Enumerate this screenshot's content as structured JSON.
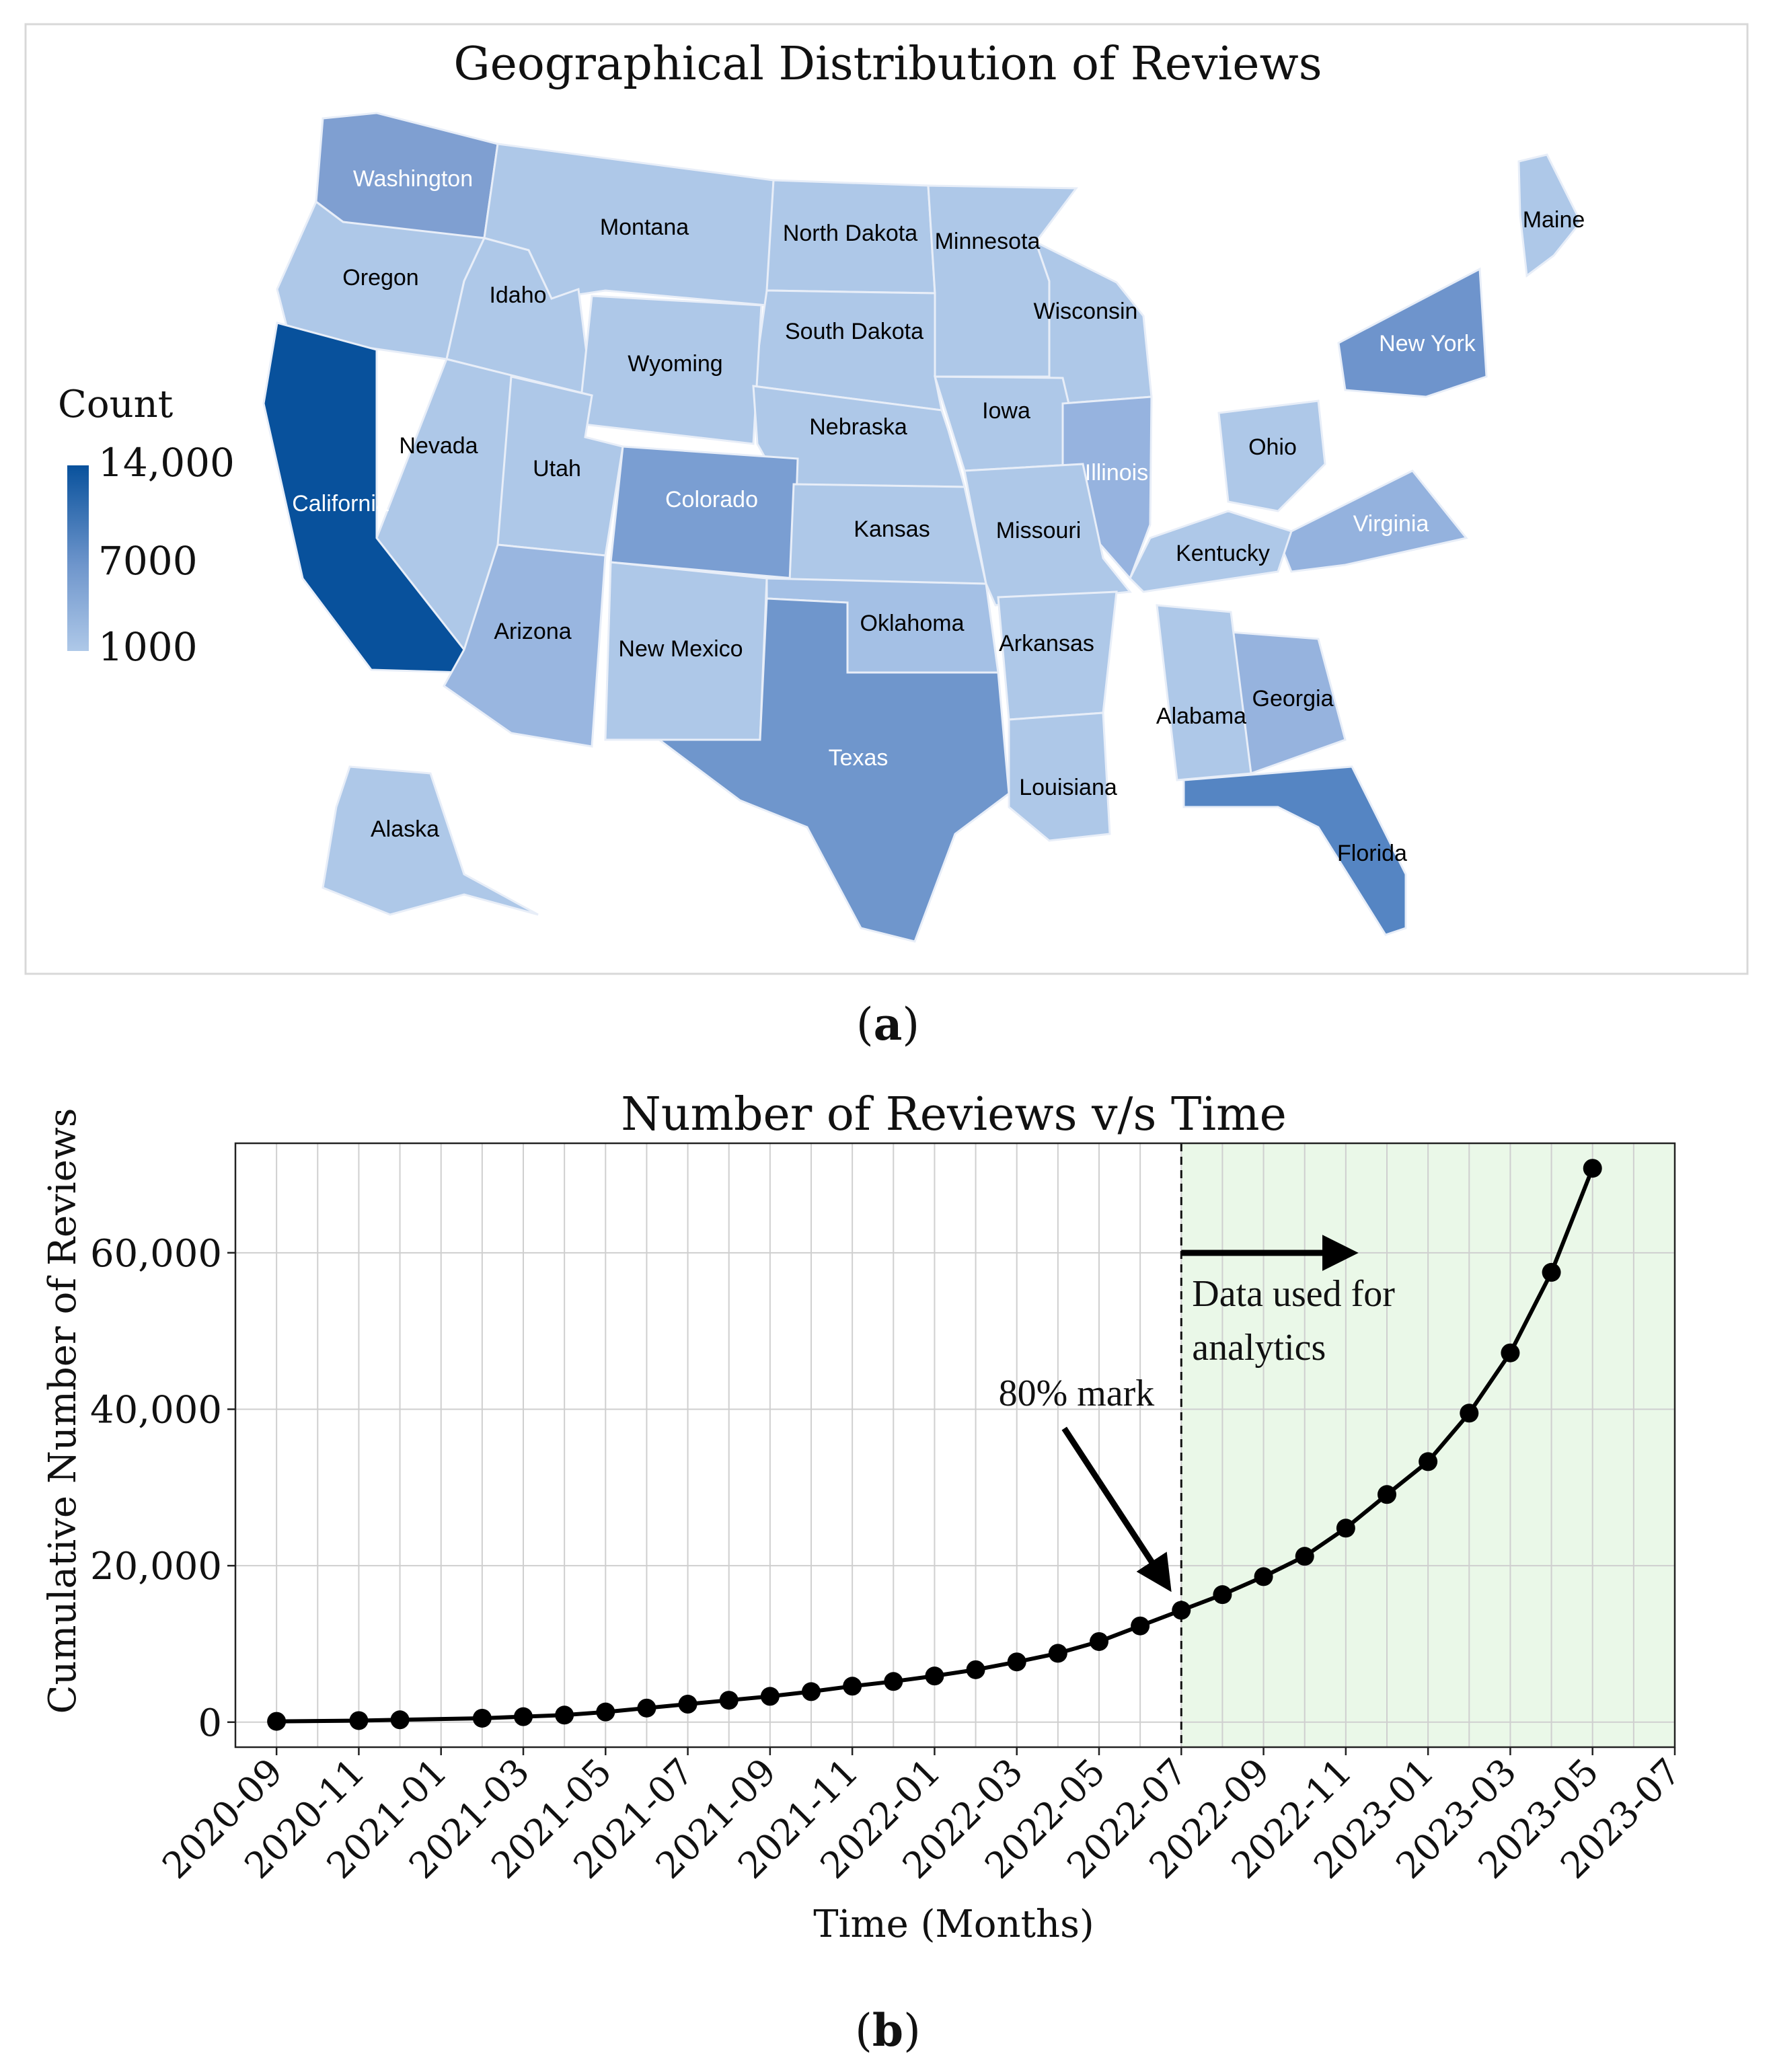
{
  "panel_a": {
    "title": "Geographical Distribution of Reviews",
    "caption_open": "(",
    "caption_letter": "a",
    "caption_close": ")",
    "colorbar": {
      "title": "Count",
      "ticks": [
        "14,000",
        "7000",
        "1000"
      ],
      "tick_values": [
        14000,
        7000,
        1000
      ],
      "color_low": "#aec8e8",
      "color_high": "#08519c"
    },
    "states": [
      {
        "name": "Washington",
        "color": "#7f9fd1",
        "label_color": "#ffffff"
      },
      {
        "name": "Oregon",
        "color": "#aec8e8",
        "label_color": "#000000"
      },
      {
        "name": "Montana",
        "color": "#aec8e8",
        "label_color": "#000000"
      },
      {
        "name": "Idaho",
        "color": "#aec8e8",
        "label_color": "#000000"
      },
      {
        "name": "North Dakota",
        "color": "#aec8e8",
        "label_color": "#000000"
      },
      {
        "name": "Minnesota",
        "color": "#aec8e8",
        "label_color": "#000000"
      },
      {
        "name": "Maine",
        "color": "#aec8e8",
        "label_color": "#000000"
      },
      {
        "name": "Wisconsin",
        "color": "#aec8e8",
        "label_color": "#000000"
      },
      {
        "name": "South Dakota",
        "color": "#aec8e8",
        "label_color": "#000000"
      },
      {
        "name": "Wyoming",
        "color": "#aec8e8",
        "label_color": "#000000"
      },
      {
        "name": "New York",
        "color": "#6e94cc",
        "label_color": "#ffffff"
      },
      {
        "name": "Nevada",
        "color": "#aec8e8",
        "label_color": "#000000"
      },
      {
        "name": "Utah",
        "color": "#aec8e8",
        "label_color": "#000000"
      },
      {
        "name": "Nebraska",
        "color": "#aec8e8",
        "label_color": "#000000"
      },
      {
        "name": "Iowa",
        "color": "#aec8e8",
        "label_color": "#000000"
      },
      {
        "name": "Ohio",
        "color": "#aec8e8",
        "label_color": "#000000"
      },
      {
        "name": "California",
        "color": "#08519c",
        "label_color": "#ffffff"
      },
      {
        "name": "Colorado",
        "color": "#7a9ed2",
        "label_color": "#ffffff"
      },
      {
        "name": "Illinois",
        "color": "#96b3df",
        "label_color": "#ffffff"
      },
      {
        "name": "Kansas",
        "color": "#aec8e8",
        "label_color": "#000000"
      },
      {
        "name": "Missouri",
        "color": "#aec8e8",
        "label_color": "#000000"
      },
      {
        "name": "Virginia",
        "color": "#94b2de",
        "label_color": "#ffffff"
      },
      {
        "name": "Kentucky",
        "color": "#aec8e8",
        "label_color": "#000000"
      },
      {
        "name": "Arizona",
        "color": "#99b6e0",
        "label_color": "#000000"
      },
      {
        "name": "New Mexico",
        "color": "#aec8e8",
        "label_color": "#000000"
      },
      {
        "name": "Oklahoma",
        "color": "#a4c0e5",
        "label_color": "#000000"
      },
      {
        "name": "Arkansas",
        "color": "#aec8e8",
        "label_color": "#000000"
      },
      {
        "name": "Georgia",
        "color": "#96b3de",
        "label_color": "#000000"
      },
      {
        "name": "Alabama",
        "color": "#aec8e8",
        "label_color": "#000000"
      },
      {
        "name": "Texas",
        "color": "#6f96cc",
        "label_color": "#ffffff"
      },
      {
        "name": "Louisiana",
        "color": "#aec8e8",
        "label_color": "#000000"
      },
      {
        "name": "Alaska",
        "color": "#aec8e8",
        "label_color": "#000000"
      },
      {
        "name": "Florida",
        "color": "#5585c3",
        "label_color": "#000000"
      }
    ]
  },
  "panel_b": {
    "caption_open": "(",
    "caption_letter": "b",
    "caption_close": ")",
    "annotations": {
      "mark_label": "80% mark",
      "region_label_line1": "Data used for",
      "region_label_line2": "analytics",
      "divider_date": "2022-07",
      "region_fill": "#eaf8e8"
    },
    "line_color": "#000000"
  },
  "chart_data": [
    {
      "type": "choropleth",
      "title": "Geographical Distribution of Reviews",
      "legend_title": "Count",
      "scale_ticks": [
        1000,
        7000,
        14000
      ],
      "scale_range": [
        1000,
        14000
      ]
    },
    {
      "type": "line",
      "title": "Number of Reviews v/s Time",
      "xlabel": "Time (Months)",
      "ylabel": "Cumulative Number of Reviews",
      "x_ticks": [
        "2020-09",
        "2020-11",
        "2021-01",
        "2021-03",
        "2021-05",
        "2021-07",
        "2021-09",
        "2021-11",
        "2022-01",
        "2022-03",
        "2022-05",
        "2022-07",
        "2022-09",
        "2022-11",
        "2023-01",
        "2023-03",
        "2023-05",
        "2023-07"
      ],
      "y_ticks": [
        0,
        20000,
        40000,
        60000
      ],
      "y_tick_labels": [
        "0",
        "20,000",
        "40,000",
        "60,000"
      ],
      "xlim": [
        "2020-08",
        "2023-07"
      ],
      "ylim": [
        -3200,
        74000
      ],
      "grid": true,
      "x": [
        "2020-09",
        "2020-11",
        "2020-12",
        "2021-02",
        "2021-03",
        "2021-04",
        "2021-05",
        "2021-06",
        "2021-07",
        "2021-08",
        "2021-09",
        "2021-10",
        "2021-11",
        "2021-12",
        "2022-01",
        "2022-02",
        "2022-03",
        "2022-04",
        "2022-05",
        "2022-06",
        "2022-07",
        "2022-08",
        "2022-09",
        "2022-10",
        "2022-11",
        "2022-12",
        "2023-01",
        "2023-02",
        "2023-03",
        "2023-04",
        "2023-05"
      ],
      "y": [
        100,
        200,
        300,
        500,
        700,
        900,
        1300,
        1800,
        2300,
        2800,
        3300,
        3900,
        4600,
        5200,
        5900,
        6700,
        7700,
        8800,
        10300,
        12300,
        14300,
        16300,
        18600,
        21200,
        24800,
        29100,
        33300,
        39500,
        47200,
        57500,
        70800
      ]
    }
  ]
}
